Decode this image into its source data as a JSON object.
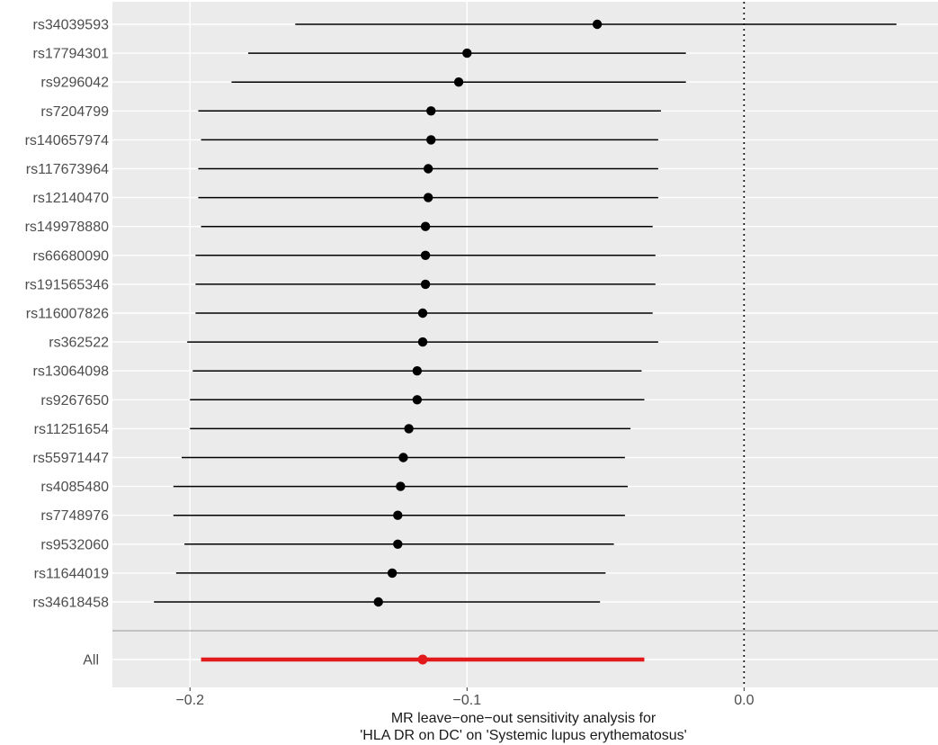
{
  "chart_data": {
    "type": "forest",
    "title": "",
    "xlabel_lines": [
      "MR leave−one−out sensitivity analysis for",
      "'HLA DR on DC' on 'Systemic lupus erythematosus'"
    ],
    "ylabel": "",
    "xlim": [
      -0.228,
      0.07
    ],
    "x_ticks": [
      -0.2,
      -0.1,
      0.0
    ],
    "x_tick_labels": [
      "−0.2",
      "−0.1",
      "0.0"
    ],
    "reference_line": 0.0,
    "grid": true,
    "snps": [
      {
        "label": "rs34039593",
        "estimate": -0.053,
        "lower": -0.162,
        "upper": 0.055
      },
      {
        "label": "rs17794301",
        "estimate": -0.1,
        "lower": -0.179,
        "upper": -0.021
      },
      {
        "label": "rs9296042",
        "estimate": -0.103,
        "lower": -0.185,
        "upper": -0.021
      },
      {
        "label": "rs7204799",
        "estimate": -0.113,
        "lower": -0.197,
        "upper": -0.03
      },
      {
        "label": "rs140657974",
        "estimate": -0.113,
        "lower": -0.196,
        "upper": -0.031
      },
      {
        "label": "rs117673964",
        "estimate": -0.114,
        "lower": -0.197,
        "upper": -0.031
      },
      {
        "label": "rs12140470",
        "estimate": -0.114,
        "lower": -0.197,
        "upper": -0.031
      },
      {
        "label": "rs149978880",
        "estimate": -0.115,
        "lower": -0.196,
        "upper": -0.033
      },
      {
        "label": "rs66680090",
        "estimate": -0.115,
        "lower": -0.198,
        "upper": -0.032
      },
      {
        "label": "rs191565346",
        "estimate": -0.115,
        "lower": -0.198,
        "upper": -0.032
      },
      {
        "label": "rs116007826",
        "estimate": -0.116,
        "lower": -0.198,
        "upper": -0.033
      },
      {
        "label": "rs362522",
        "estimate": -0.116,
        "lower": -0.201,
        "upper": -0.031
      },
      {
        "label": "rs13064098",
        "estimate": -0.118,
        "lower": -0.199,
        "upper": -0.037
      },
      {
        "label": "rs9267650",
        "estimate": -0.118,
        "lower": -0.2,
        "upper": -0.036
      },
      {
        "label": "rs11251654",
        "estimate": -0.121,
        "lower": -0.2,
        "upper": -0.041
      },
      {
        "label": "rs55971447",
        "estimate": -0.123,
        "lower": -0.203,
        "upper": -0.043
      },
      {
        "label": "rs4085480",
        "estimate": -0.124,
        "lower": -0.206,
        "upper": -0.042
      },
      {
        "label": "rs7748976",
        "estimate": -0.125,
        "lower": -0.206,
        "upper": -0.043
      },
      {
        "label": "rs9532060",
        "estimate": -0.125,
        "lower": -0.202,
        "upper": -0.047
      },
      {
        "label": "rs11644019",
        "estimate": -0.127,
        "lower": -0.205,
        "upper": -0.05
      },
      {
        "label": "rs34618458",
        "estimate": -0.132,
        "lower": -0.213,
        "upper": -0.052
      }
    ],
    "overall": {
      "label": "All",
      "estimate": -0.116,
      "lower": -0.196,
      "upper": -0.036
    },
    "colors": {
      "panel_background": "#ebebeb",
      "grid_major": "#ffffff",
      "point": "#000000",
      "overall": "#e31a1c",
      "separator": "#b3b3b3",
      "reference_line": "#000000"
    }
  }
}
